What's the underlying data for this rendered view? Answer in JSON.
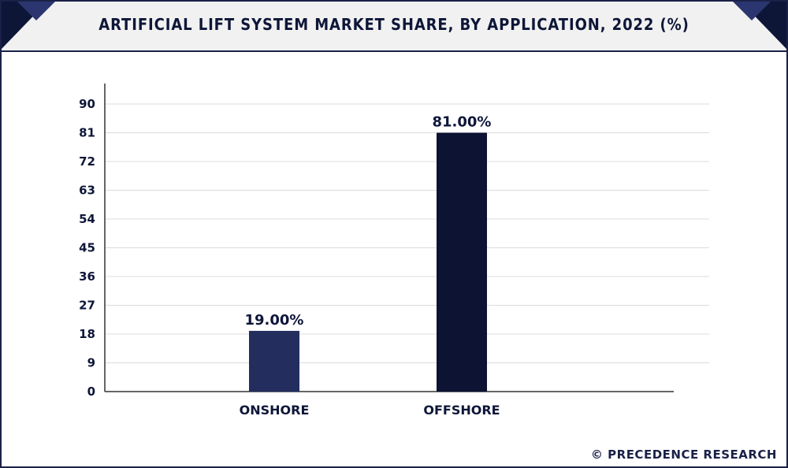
{
  "title": "ARTIFICIAL LIFT SYSTEM MARKET SHARE, BY APPLICATION, 2022 (%)",
  "footer": {
    "copyright": "© PRECEDENCE RESEARCH"
  },
  "colors": {
    "frame": "#1a2148",
    "onshore_bar": "#232d5e",
    "offshore_bar": "#0c1333",
    "text": "#0e1638",
    "grid": "#dcdcdc"
  },
  "chart_data": {
    "type": "bar",
    "categories": [
      "ONSHORE",
      "OFFSHORE"
    ],
    "values": [
      19,
      81
    ],
    "data_labels": [
      "19.00%",
      "81.00%"
    ],
    "bar_colors": [
      "#232d5e",
      "#0c1333"
    ],
    "yticks": [
      "0",
      "9",
      "18",
      "27",
      "36",
      "45",
      "54",
      "63",
      "72",
      "81",
      "90"
    ],
    "ylim": [
      0,
      90
    ],
    "grid": true,
    "xlabel": "",
    "ylabel": ""
  }
}
